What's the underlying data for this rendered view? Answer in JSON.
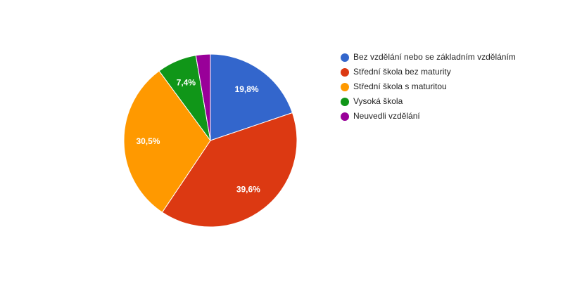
{
  "chart_data": {
    "type": "pie",
    "categories": [
      "Bez vzdělání nebo se základním vzděláním",
      "Střední škola bez maturity",
      "Střední škola s maturitou",
      "Vysoká škola",
      "Neuvedli vzdělání"
    ],
    "values": [
      19.8,
      39.6,
      30.5,
      7.4,
      2.7
    ],
    "value_labels": [
      "19,8%",
      "39,6%",
      "30,5%",
      "7,4%",
      null
    ],
    "colors": [
      "#3366cc",
      "#dc3912",
      "#ff9900",
      "#109618",
      "#990099"
    ],
    "legend": "right"
  }
}
